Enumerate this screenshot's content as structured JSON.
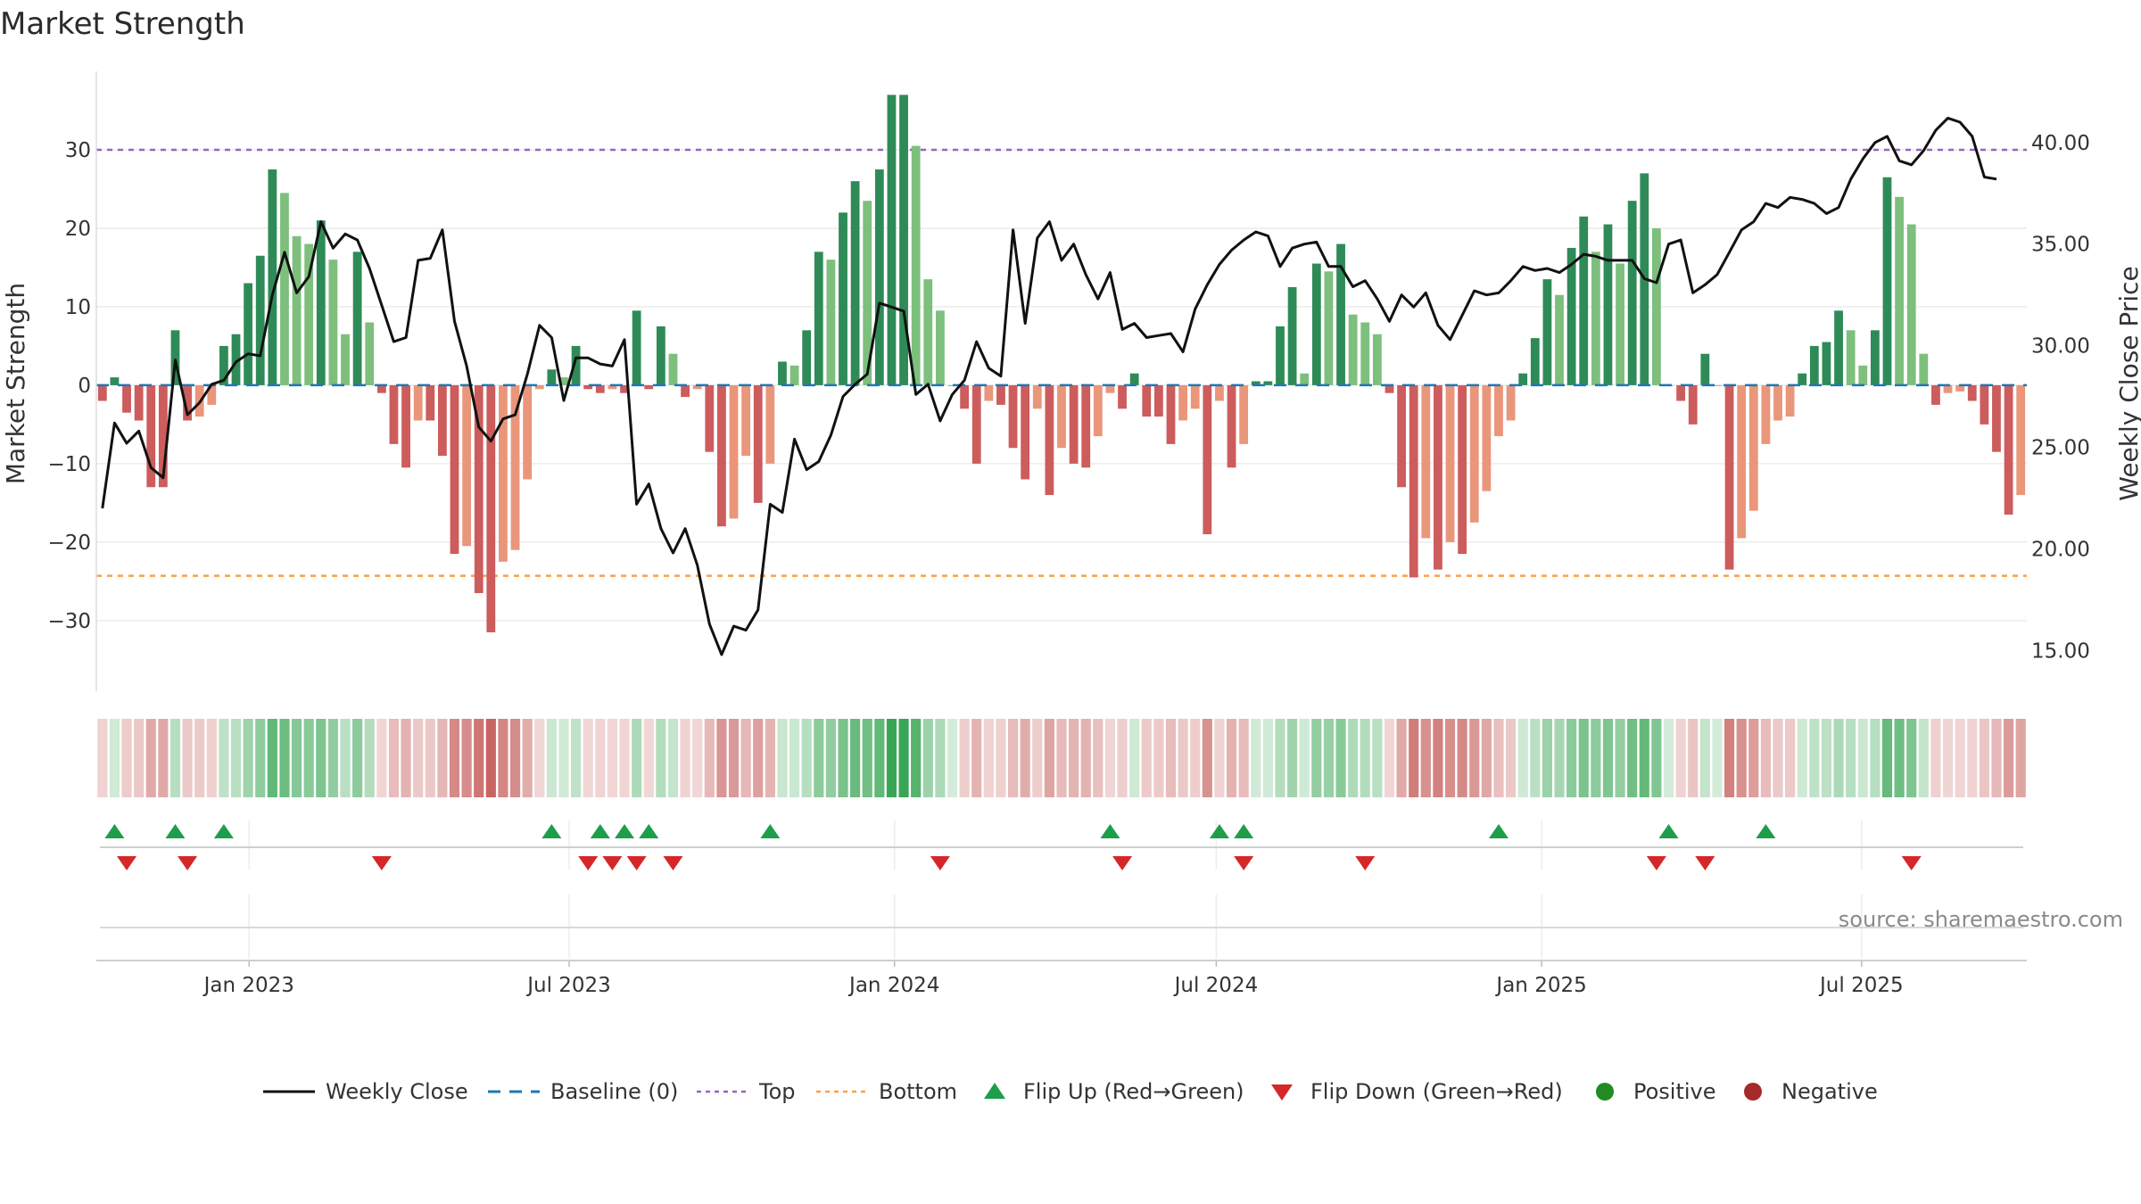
{
  "chart_data": {
    "type": "bar",
    "title": "Market Strength",
    "ylabel": "Market Strength",
    "y2label": "Weekly Close Price",
    "ylim": [
      -39,
      40
    ],
    "y2lim": [
      13,
      43.5
    ],
    "yticks": [
      30,
      20,
      10,
      0,
      -10,
      -20,
      -30
    ],
    "yticks_labels": [
      "30",
      "20",
      "10",
      "0",
      "−10",
      "−20",
      "−30"
    ],
    "y2ticks": [
      40,
      35,
      30,
      25,
      20,
      15
    ],
    "y2ticks_labels": [
      "40.00",
      "35.00",
      "30.00",
      "25.00",
      "20.00",
      "15.00"
    ],
    "top_line": 30,
    "bottom_line": -24.3,
    "date_start": "2022-10-10",
    "date_end": "2025-09-29",
    "xticks": [
      {
        "label": "Jan 2023",
        "date": "2023-01-01"
      },
      {
        "label": "Jul 2023",
        "date": "2023-07-01"
      },
      {
        "label": "Jan 2024",
        "date": "2024-01-01"
      },
      {
        "label": "Jul 2024",
        "date": "2024-07-01"
      },
      {
        "label": "Jan 2025",
        "date": "2025-01-01"
      },
      {
        "label": "Jul 2025",
        "date": "2025-07-01"
      }
    ],
    "strength": [
      -2,
      1,
      -3.5,
      -4.5,
      -13,
      -13,
      7,
      -4.5,
      -4,
      -2.5,
      5,
      6.5,
      13,
      16.5,
      27.5,
      24.5,
      19,
      18,
      21,
      16,
      6.5,
      17,
      8,
      -1,
      -7.5,
      -10.5,
      -4.5,
      -4.5,
      -9,
      -21.5,
      -20.5,
      -26.5,
      -31.5,
      -22.5,
      -21,
      -12,
      -0.5,
      2,
      1,
      5,
      -0.5,
      -1,
      -0.5,
      -1,
      9.5,
      -0.5,
      7.5,
      4,
      -1.5,
      -0.5,
      -8.5,
      -18,
      -17,
      -9,
      -15,
      -10,
      3,
      2.5,
      7,
      17,
      16,
      22,
      26,
      23.5,
      27.5,
      37,
      37,
      30.5,
      13.5,
      9.5,
      0,
      -3,
      -10,
      -2,
      -2.5,
      -8,
      -12,
      -3,
      -14,
      -8,
      -10,
      -10.5,
      -6.5,
      -1,
      -3,
      1.5,
      -4,
      -4,
      -7.5,
      -4.5,
      -3,
      -19,
      -2,
      -10.5,
      -7.5,
      0.5,
      0.5,
      7.5,
      12.5,
      1.5,
      15.5,
      14.5,
      18,
      9,
      8,
      6.5,
      -1,
      -13,
      -24.5,
      -19.5,
      -23.5,
      -20,
      -21.5,
      -17.5,
      -13.5,
      -6.5,
      -4.5,
      1.5,
      6,
      13.5,
      11.5,
      17.5,
      21.5,
      17,
      20.5,
      15.5,
      23.5,
      27,
      20,
      0,
      -2,
      -5,
      4,
      0,
      -23.5,
      -19.5,
      -16,
      -7.5,
      -4.5,
      -4,
      1.5,
      5,
      5.5,
      9.5,
      7,
      2.5,
      7,
      26.5,
      24,
      20.5,
      4,
      -2.5,
      -1,
      -0.8,
      -2,
      -5,
      -8.5,
      -16.5,
      -14
    ],
    "close": [
      22.0,
      26.2,
      25.2,
      25.8,
      24.0,
      23.5,
      29.3,
      26.6,
      27.2,
      28.1,
      28.3,
      29.2,
      29.6,
      29.5,
      32.5,
      34.6,
      32.6,
      33.4,
      36.1,
      34.8,
      35.5,
      35.2,
      33.8,
      32.0,
      30.2,
      30.4,
      34.2,
      34.3,
      35.7,
      31.2,
      29.0,
      26.0,
      25.3,
      26.4,
      26.6,
      28.6,
      31.0,
      30.4,
      27.3,
      29.4,
      29.4,
      29.1,
      29.0,
      30.3,
      22.2,
      23.2,
      21.0,
      19.8,
      21.0,
      19.2,
      16.3,
      14.8,
      16.2,
      16.0,
      17.0,
      22.2,
      21.8,
      25.4,
      23.9,
      24.3,
      25.6,
      27.5,
      28.1,
      28.6,
      32.1,
      31.9,
      31.7,
      27.6,
      28.1,
      26.3,
      27.6,
      28.3,
      30.2,
      28.9,
      28.5,
      35.7,
      31.1,
      35.3,
      36.1,
      34.2,
      35.0,
      33.5,
      32.3,
      33.6,
      30.8,
      31.1,
      30.4,
      30.5,
      30.6,
      29.7,
      31.8,
      33.0,
      34.0,
      34.7,
      35.2,
      35.6,
      35.4,
      33.9,
      34.8,
      35.0,
      35.1,
      33.9,
      33.9,
      32.9,
      33.2,
      32.3,
      31.2,
      32.5,
      31.9,
      32.6,
      31.0,
      30.3,
      31.5,
      32.7,
      32.5,
      32.6,
      33.2,
      33.9,
      33.7,
      33.8,
      33.6,
      34.0,
      34.5,
      34.4,
      34.2,
      34.2,
      34.2,
      33.3,
      33.1,
      35.0,
      35.2,
      32.6,
      33.0,
      33.5,
      34.6,
      35.7,
      36.1,
      37.0,
      36.8,
      37.3,
      37.2,
      37.0,
      36.5,
      36.8,
      38.2,
      39.2,
      40.0,
      40.3,
      39.1,
      38.9,
      39.6,
      40.6,
      41.2,
      41.0,
      40.3,
      38.3,
      38.2
    ],
    "flip_up": [
      1,
      6,
      10,
      37,
      41,
      43,
      45,
      55,
      83,
      92,
      94,
      115,
      129,
      137
    ],
    "flip_down": [
      2,
      7,
      23,
      40,
      42,
      44,
      47,
      69,
      84,
      94,
      104,
      128,
      132,
      149
    ],
    "series": [
      {
        "name": "Weekly Close",
        "color": "#111111"
      },
      {
        "name": "Baseline (0)",
        "color": "#1f77b4"
      },
      {
        "name": "Top",
        "color": "#9467bd"
      },
      {
        "name": "Bottom",
        "color": "#ff9f43"
      },
      {
        "name": "Flip Up (Red→Green)",
        "color": "#1e9e4a"
      },
      {
        "name": "Flip Down (Green→Red)",
        "color": "#d62728"
      },
      {
        "name": "Positive",
        "color": "#228b22"
      },
      {
        "name": "Negative",
        "color": "#a52a2a"
      }
    ],
    "legend_position": "bottom-center"
  },
  "labels": {
    "title": "Market Strength",
    "ylabel": "Market Strength",
    "y2label": "Weekly Close Price",
    "source": "source: sharemaestro.com"
  },
  "colors": {
    "pos_strong": "#2e8b57",
    "pos_light": "#7dbf7d",
    "neg_strong": "#cd5c5c",
    "neg_light": "#e9967a",
    "heat_green": "#3aa655",
    "heat_red": "#c0504d"
  }
}
